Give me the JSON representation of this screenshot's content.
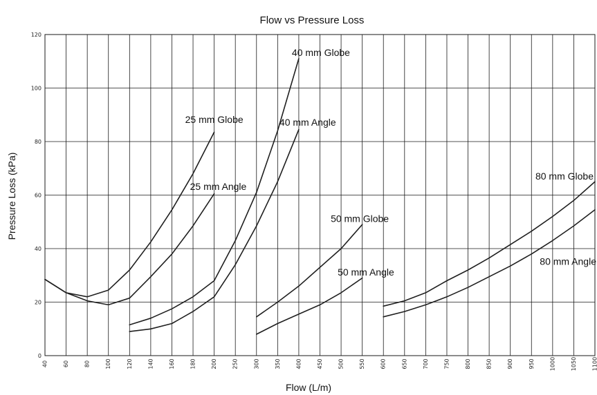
{
  "chart_data": {
    "type": "line",
    "title": "Flow vs Pressure Loss",
    "xlabel": "Flow (L/m)",
    "ylabel": "Pressure Loss (kPa)",
    "x_ticks": [
      40,
      60,
      80,
      100,
      120,
      140,
      160,
      180,
      200,
      250,
      300,
      350,
      400,
      450,
      500,
      550,
      600,
      650,
      700,
      750,
      800,
      850,
      900,
      950,
      1000,
      1050,
      1100
    ],
    "ylim": [
      0,
      120
    ],
    "y_ticks": [
      0,
      20,
      40,
      60,
      80,
      100,
      120
    ],
    "grid": true,
    "legend": "none",
    "series": [
      {
        "name": "",
        "points": [
          [
            40,
            28.5
          ],
          [
            60,
            23.5
          ],
          [
            80,
            22
          ],
          [
            100,
            24.5
          ],
          [
            120,
            32
          ],
          [
            140,
            42.5
          ],
          [
            160,
            54.5
          ],
          [
            180,
            68
          ],
          [
            200,
            83.5
          ]
        ]
      },
      {
        "name": "",
        "points": [
          [
            40,
            28.5
          ],
          [
            60,
            23.5
          ],
          [
            80,
            20.5
          ],
          [
            100,
            19
          ],
          [
            120,
            21.5
          ],
          [
            140,
            29.5
          ],
          [
            160,
            38
          ],
          [
            180,
            48.5
          ],
          [
            200,
            60.5
          ]
        ]
      },
      {
        "name": "25 mm Globe",
        "points": [
          [
            120,
            11.5
          ],
          [
            140,
            14
          ],
          [
            160,
            17.5
          ],
          [
            180,
            22
          ],
          [
            200,
            28
          ],
          [
            250,
            43
          ],
          [
            300,
            61
          ],
          [
            350,
            84
          ],
          [
            400,
            111
          ]
        ]
      },
      {
        "name": "40 mm Angle",
        "points": [
          [
            120,
            9
          ],
          [
            140,
            10
          ],
          [
            160,
            12
          ],
          [
            180,
            16.5
          ],
          [
            200,
            22
          ],
          [
            250,
            34
          ],
          [
            300,
            48.5
          ],
          [
            350,
            65
          ],
          [
            400,
            84.5
          ]
        ]
      },
      {
        "name": "50 mm Globe",
        "points": [
          [
            300,
            14.5
          ],
          [
            350,
            20
          ],
          [
            400,
            26
          ],
          [
            450,
            33
          ],
          [
            500,
            40
          ],
          [
            550,
            49
          ]
        ]
      },
      {
        "name": "50 mm Angle",
        "points": [
          [
            300,
            8
          ],
          [
            350,
            12
          ],
          [
            400,
            15.5
          ],
          [
            450,
            19
          ],
          [
            500,
            23.5
          ],
          [
            550,
            29
          ]
        ]
      },
      {
        "name": "80 mm Globe",
        "points": [
          [
            600,
            18.5
          ],
          [
            650,
            20.5
          ],
          [
            700,
            23.5
          ],
          [
            750,
            28
          ],
          [
            800,
            32
          ],
          [
            850,
            36.5
          ],
          [
            900,
            41.5
          ],
          [
            950,
            46.5
          ],
          [
            1000,
            52
          ],
          [
            1050,
            58
          ],
          [
            1100,
            65
          ]
        ]
      },
      {
        "name": "80 mm Angle",
        "points": [
          [
            600,
            14.5
          ],
          [
            650,
            16.5
          ],
          [
            700,
            19
          ],
          [
            750,
            22
          ],
          [
            800,
            25.5
          ],
          [
            850,
            29.5
          ],
          [
            900,
            33.5
          ],
          [
            950,
            38
          ],
          [
            1000,
            43
          ],
          [
            1050,
            48.5
          ],
          [
            1100,
            54.5
          ]
        ]
      }
    ],
    "annotations": [
      {
        "text": "40 mm Globe",
        "x": 400,
        "y": 112
      },
      {
        "text": "25 mm Globe",
        "x": 200,
        "y": 87
      },
      {
        "text": "40 mm Angle",
        "x": 400,
        "y": 86
      },
      {
        "text": "25 mm Angle",
        "x": 200,
        "y": 62
      },
      {
        "text": "50 mm Globe",
        "x": 500,
        "y": 50
      },
      {
        "text": "50 mm Angle",
        "x": 500,
        "y": 30
      },
      {
        "text": "80 mm Globe",
        "x": 1100,
        "y": 65
      },
      {
        "text": "80 mm Angle",
        "x": 1100,
        "y": 34
      }
    ]
  }
}
